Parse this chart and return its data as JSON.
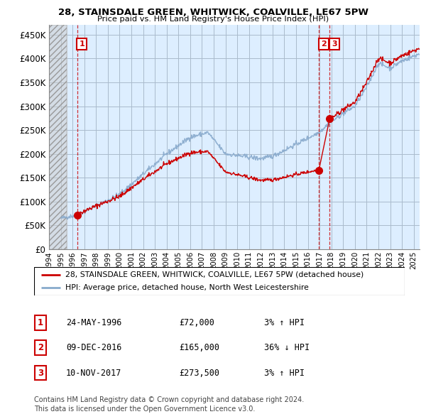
{
  "title": "28, STAINSDALE GREEN, WHITWICK, COALVILLE, LE67 5PW",
  "subtitle": "Price paid vs. HM Land Registry's House Price Index (HPI)",
  "ylim": [
    0,
    470000
  ],
  "yticks": [
    0,
    50000,
    100000,
    150000,
    200000,
    250000,
    300000,
    350000,
    400000,
    450000
  ],
  "ytick_labels": [
    "£0",
    "£50K",
    "£100K",
    "£150K",
    "£200K",
    "£250K",
    "£300K",
    "£350K",
    "£400K",
    "£450K"
  ],
  "xlim_start": 1994.0,
  "xlim_end": 2025.5,
  "transactions": [
    {
      "year": 1996.39,
      "price": 72000,
      "label": "1"
    },
    {
      "year": 2016.93,
      "price": 165000,
      "label": "2"
    },
    {
      "year": 2017.85,
      "price": 273500,
      "label": "3"
    }
  ],
  "legend_line1": "28, STAINSDALE GREEN, WHITWICK, COALVILLE, LE67 5PW (detached house)",
  "legend_line2": "HPI: Average price, detached house, North West Leicestershire",
  "table_rows": [
    {
      "num": "1",
      "date": "24-MAY-1996",
      "price": "£72,000",
      "change": "3% ↑ HPI"
    },
    {
      "num": "2",
      "date": "09-DEC-2016",
      "price": "£165,000",
      "change": "36% ↓ HPI"
    },
    {
      "num": "3",
      "date": "10-NOV-2017",
      "price": "£273,500",
      "change": "3% ↑ HPI"
    }
  ],
  "footer": "Contains HM Land Registry data © Crown copyright and database right 2024.\nThis data is licensed under the Open Government Licence v3.0.",
  "red_color": "#cc0000",
  "blue_color": "#88aacc",
  "hatched_region_end": 1995.5,
  "background_chart": "#ddeeff",
  "grid_color": "#aabbcc"
}
